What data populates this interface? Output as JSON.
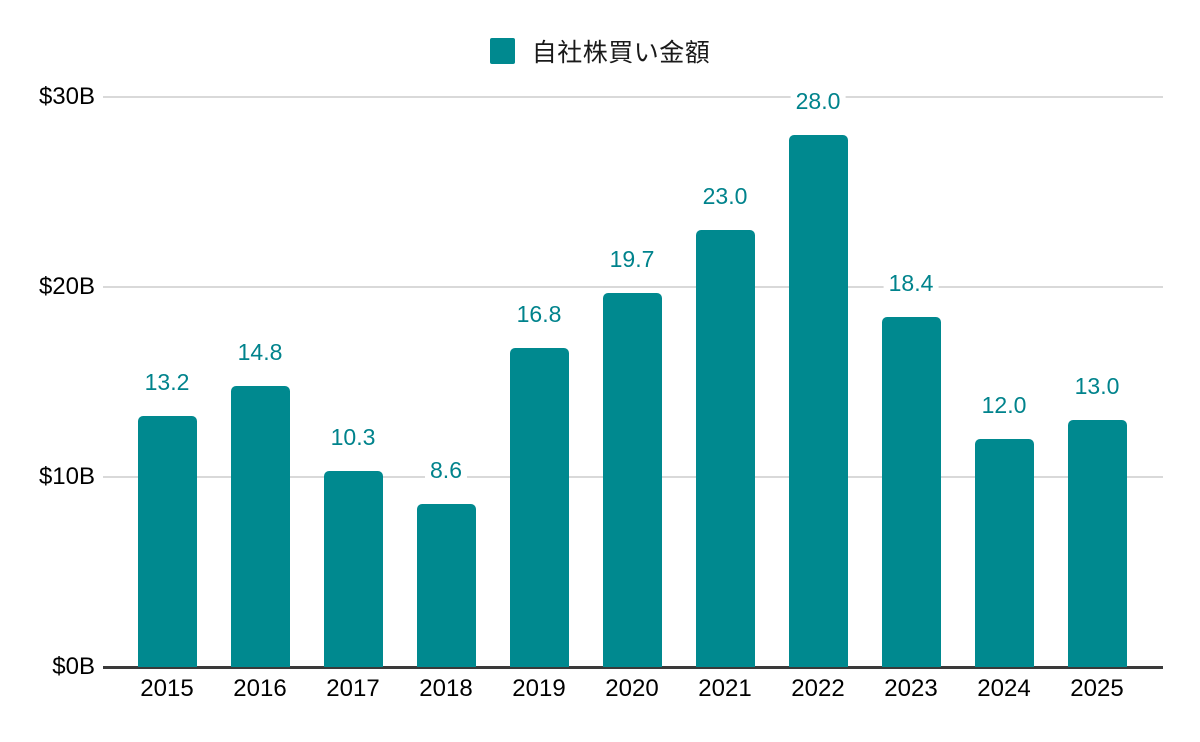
{
  "legend": {
    "label": "自社株買い金額"
  },
  "chart_data": {
    "type": "bar",
    "title": "",
    "series_name": "自社株買い金額",
    "categories": [
      "2015",
      "2016",
      "2017",
      "2018",
      "2019",
      "2020",
      "2021",
      "2022",
      "2023",
      "2024",
      "2025"
    ],
    "values": [
      13.2,
      14.8,
      10.3,
      8.6,
      16.8,
      19.7,
      23.0,
      28.0,
      18.4,
      12.0,
      13.0
    ],
    "value_labels": [
      "13.2",
      "14.8",
      "10.3",
      "8.6",
      "16.8",
      "19.7",
      "23.0",
      "28.0",
      "18.4",
      "12.0",
      "13.0"
    ],
    "xlabel": "",
    "ylabel": "",
    "ylim": [
      0,
      30
    ],
    "yticks": [
      {
        "value": 0,
        "label": "$0B"
      },
      {
        "value": 10,
        "label": "$10B"
      },
      {
        "value": 20,
        "label": "$20B"
      },
      {
        "value": 30,
        "label": "$30B"
      }
    ],
    "grid": true,
    "legend_position": "top-center",
    "colors": {
      "bar": "#00898f",
      "value_label": "#00838c",
      "gridline": "#d9d9d9",
      "axis_line": "#3a3a3a",
      "tick_label": "#000000",
      "legend_text": "#1a1a1a",
      "background": "#ffffff"
    }
  }
}
